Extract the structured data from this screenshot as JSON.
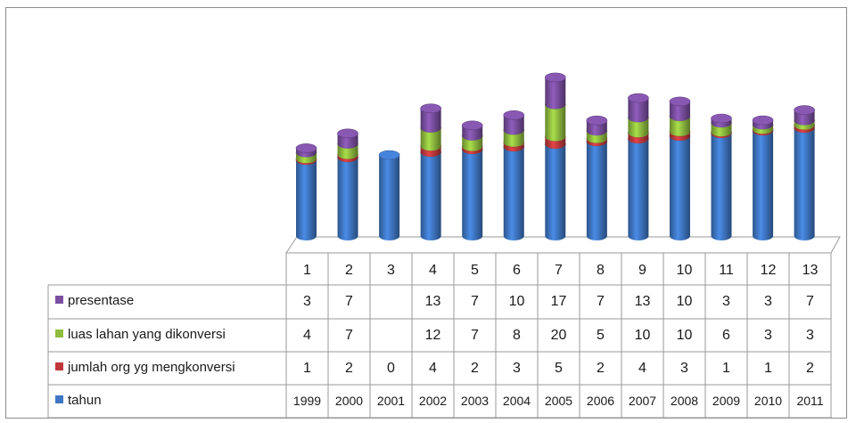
{
  "chart_data": {
    "type": "bar",
    "stacked": true,
    "style": "3d-cylinder",
    "categories": [
      "1",
      "2",
      "3",
      "4",
      "5",
      "6",
      "7",
      "8",
      "9",
      "10",
      "11",
      "12",
      "13"
    ],
    "series": [
      {
        "name": "presentase",
        "color": "#7a4fa0",
        "values": [
          3,
          7,
          null,
          13,
          7,
          10,
          17,
          7,
          13,
          10,
          3,
          3,
          7
        ]
      },
      {
        "name": "luas lahan yang dikonversi",
        "color": "#8fbd3f",
        "values": [
          4,
          7,
          null,
          12,
          7,
          8,
          20,
          5,
          10,
          10,
          6,
          3,
          3
        ]
      },
      {
        "name": "jumlah org yg mengkonversi",
        "color": "#c0393b",
        "values": [
          1,
          2,
          0,
          4,
          2,
          3,
          5,
          2,
          4,
          3,
          1,
          1,
          2
        ]
      },
      {
        "name": "tahun",
        "color": "#3f77c4",
        "values": [
          1999,
          2000,
          2001,
          2002,
          2003,
          2004,
          2005,
          2006,
          2007,
          2008,
          2009,
          2010,
          2011
        ]
      }
    ],
    "legend": "data-table-left",
    "grid": false,
    "title": "",
    "xlabel": "",
    "ylabel": ""
  }
}
